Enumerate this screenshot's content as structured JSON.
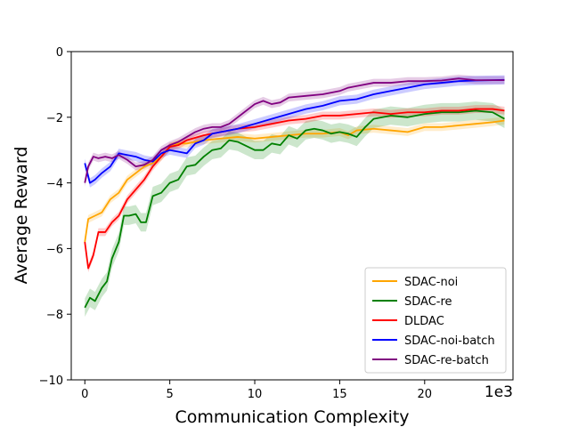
{
  "chart_data": {
    "type": "line",
    "title": "",
    "xlabel": "Communication Complexity",
    "ylabel": "Average Reward",
    "x_offset_label": "1e3",
    "xlim": [
      -0.8,
      25.2
    ],
    "ylim": [
      -10,
      0
    ],
    "xticks": [
      0,
      5,
      10,
      15,
      20
    ],
    "yticks": [
      -10,
      -8,
      -6,
      -4,
      -2,
      0
    ],
    "grid": false,
    "legend_position": "lower-right",
    "series": [
      {
        "name": "SDAC-noi",
        "color": "#FFA500",
        "x": [
          0,
          0.2,
          0.6,
          1,
          1.5,
          2,
          2.5,
          3,
          3.5,
          4,
          4.5,
          5,
          5.5,
          6,
          7,
          8,
          9,
          10,
          11,
          12,
          13,
          14,
          15,
          15.5,
          16,
          17,
          18,
          19,
          20,
          21,
          22,
          23,
          24,
          24.7
        ],
        "y": [
          -5.8,
          -5.1,
          -5.0,
          -4.9,
          -4.5,
          -4.3,
          -3.9,
          -3.7,
          -3.5,
          -3.4,
          -3.2,
          -2.9,
          -2.8,
          -2.8,
          -2.7,
          -2.65,
          -2.6,
          -2.65,
          -2.6,
          -2.55,
          -2.5,
          -2.5,
          -2.45,
          -2.55,
          -2.4,
          -2.35,
          -2.4,
          -2.45,
          -2.3,
          -2.3,
          -2.25,
          -2.2,
          -2.15,
          -2.1
        ],
        "band": 0.12
      },
      {
        "name": "SDAC-re",
        "color": "#008000",
        "x": [
          0,
          0.3,
          0.6,
          1,
          1.3,
          1.6,
          2,
          2.3,
          2.6,
          3,
          3.3,
          3.6,
          4,
          4.5,
          5,
          5.5,
          6,
          6.5,
          7,
          7.5,
          8,
          8.5,
          9,
          10,
          10.5,
          11,
          11.5,
          12,
          12.5,
          13,
          13.5,
          14,
          14.5,
          15,
          15.5,
          16,
          16.5,
          17,
          18,
          19,
          20,
          21,
          22,
          23,
          24,
          24.7
        ],
        "y": [
          -7.8,
          -7.5,
          -7.6,
          -7.2,
          -7.0,
          -6.3,
          -5.8,
          -5.0,
          -5.0,
          -4.95,
          -5.2,
          -5.2,
          -4.4,
          -4.3,
          -4.0,
          -3.9,
          -3.5,
          -3.45,
          -3.2,
          -3.0,
          -2.95,
          -2.7,
          -2.75,
          -3.0,
          -3.0,
          -2.8,
          -2.85,
          -2.55,
          -2.65,
          -2.4,
          -2.35,
          -2.4,
          -2.5,
          -2.45,
          -2.5,
          -2.6,
          -2.3,
          -2.05,
          -1.95,
          -2.0,
          -1.9,
          -1.85,
          -1.85,
          -1.8,
          -1.85,
          -2.05
        ],
        "band": 0.28
      },
      {
        "name": "DLDAC",
        "color": "#FF0000",
        "x": [
          0,
          0.2,
          0.5,
          0.8,
          1.2,
          1.6,
          2,
          2.5,
          3,
          3.5,
          4,
          4.5,
          5,
          5.5,
          6,
          7,
          8,
          9,
          10,
          11,
          12,
          13,
          14,
          15,
          16,
          17,
          18,
          19,
          20,
          21,
          22,
          23,
          24,
          24.7
        ],
        "y": [
          -5.8,
          -6.6,
          -6.2,
          -5.5,
          -5.5,
          -5.2,
          -5.0,
          -4.5,
          -4.2,
          -3.9,
          -3.5,
          -3.2,
          -2.9,
          -2.85,
          -2.7,
          -2.55,
          -2.45,
          -2.35,
          -2.3,
          -2.2,
          -2.1,
          -2.05,
          -1.95,
          -1.95,
          -1.9,
          -1.85,
          -1.9,
          -1.85,
          -1.85,
          -1.8,
          -1.8,
          -1.75,
          -1.75,
          -1.8
        ],
        "band": 0.12
      },
      {
        "name": "SDAC-noi-batch",
        "color": "#0000FF",
        "x": [
          0,
          0.3,
          0.6,
          1,
          1.5,
          2,
          2.5,
          3,
          3.5,
          4,
          4.5,
          5,
          5.5,
          6,
          6.5,
          7,
          7.5,
          8,
          9,
          10,
          11,
          12,
          13,
          14,
          15,
          16,
          17,
          18,
          19,
          20,
          21,
          22,
          23,
          24,
          24.7
        ],
        "y": [
          -3.4,
          -4.0,
          -3.9,
          -3.7,
          -3.5,
          -3.1,
          -3.15,
          -3.2,
          -3.3,
          -3.35,
          -3.1,
          -3.0,
          -3.05,
          -3.1,
          -2.8,
          -2.7,
          -2.5,
          -2.45,
          -2.35,
          -2.2,
          -2.05,
          -1.9,
          -1.75,
          -1.65,
          -1.5,
          -1.45,
          -1.3,
          -1.2,
          -1.1,
          -1.0,
          -0.95,
          -0.9,
          -0.88,
          -0.87,
          -0.86
        ],
        "band": 0.14
      },
      {
        "name": "SDAC-re-batch",
        "color": "#800080",
        "x": [
          0,
          0.2,
          0.5,
          0.8,
          1.2,
          1.6,
          2,
          2.5,
          3,
          3.5,
          4,
          4.5,
          5,
          5.5,
          6,
          6.5,
          7,
          7.5,
          8,
          8.5,
          9,
          10,
          10.5,
          11,
          11.5,
          12,
          13,
          14,
          15,
          15.5,
          16,
          17,
          18,
          19,
          20,
          21,
          21.5,
          22,
          23,
          24,
          24.7
        ],
        "y": [
          -4.0,
          -3.5,
          -3.2,
          -3.25,
          -3.2,
          -3.25,
          -3.15,
          -3.3,
          -3.5,
          -3.45,
          -3.3,
          -3.0,
          -2.85,
          -2.75,
          -2.6,
          -2.45,
          -2.35,
          -2.3,
          -2.3,
          -2.2,
          -2.0,
          -1.6,
          -1.5,
          -1.6,
          -1.55,
          -1.4,
          -1.35,
          -1.3,
          -1.2,
          -1.1,
          -1.05,
          -0.95,
          -0.95,
          -0.9,
          -0.9,
          -0.88,
          -0.85,
          -0.82,
          -0.87,
          -0.87,
          -0.87
        ],
        "band": 0.12
      }
    ]
  }
}
